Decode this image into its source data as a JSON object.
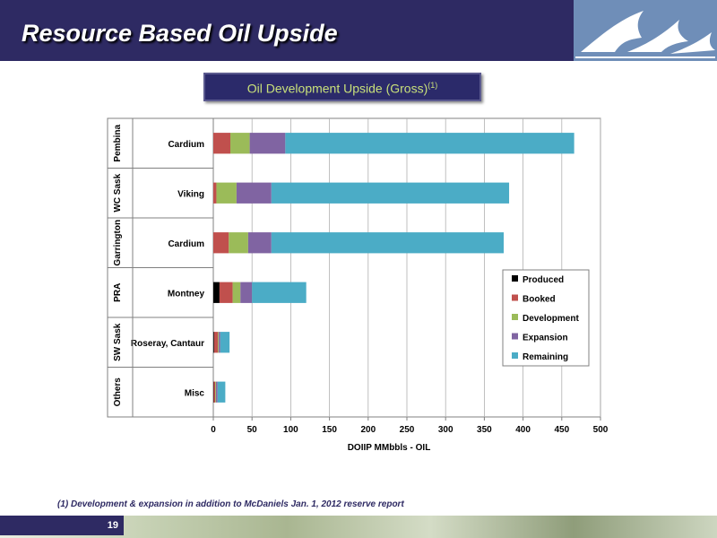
{
  "header": {
    "title": "Resource Based Oil Upside"
  },
  "chart_box": {
    "title_main": "Oil Development Upside (Gross)",
    "title_sup": "(1)"
  },
  "chart_data": {
    "type": "bar",
    "orientation": "horizontal",
    "stacked": true,
    "xlabel": "DOIIP MMbbls - OIL",
    "xlim": [
      0,
      500
    ],
    "xticks": [
      0,
      50,
      100,
      150,
      200,
      250,
      300,
      350,
      400,
      450,
      500
    ],
    "grid": true,
    "legend_position": "right",
    "groups": [
      "Pembina",
      "WC Sask",
      "Garrington",
      "PRA",
      "SW Sask",
      "Others"
    ],
    "categories": [
      "Cardium",
      "Viking",
      "Cardium",
      "Montney",
      "Roseray, Cantaur",
      "Misc"
    ],
    "series": [
      {
        "name": "Produced",
        "color": "#000000",
        "values": [
          0,
          0,
          0,
          8,
          1,
          0.5
        ]
      },
      {
        "name": "Booked",
        "color": "#c0504d",
        "values": [
          22,
          4,
          20,
          17,
          5,
          2
        ]
      },
      {
        "name": "Development",
        "color": "#9bbb59",
        "values": [
          25,
          26,
          25,
          10,
          1,
          1
        ]
      },
      {
        "name": "Expansion",
        "color": "#8064a2",
        "values": [
          46,
          45,
          30,
          15,
          2,
          2
        ]
      },
      {
        "name": "Remaining",
        "color": "#4bacc6",
        "values": [
          373,
          307,
          300,
          70,
          12,
          10
        ]
      }
    ]
  },
  "footnote": {
    "text": "(1)    Development  & expansion in addition to McDaniels Jan. 1, 2012 reserve report"
  },
  "footer": {
    "page_number": "19"
  }
}
